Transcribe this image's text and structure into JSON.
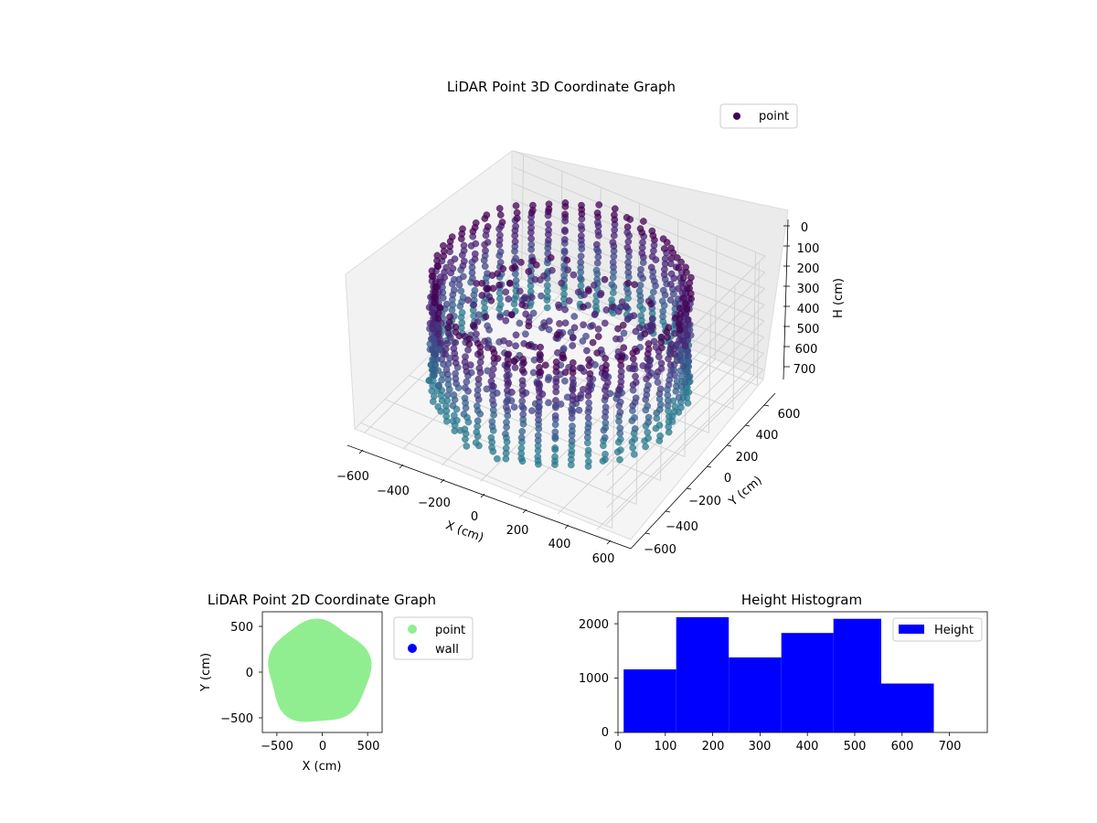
{
  "figure": {
    "background": "#ffffff"
  },
  "chart_data": [
    {
      "type": "scatter",
      "projection": "3d",
      "title": "LiDAR Point 3D Coordinate Graph",
      "xlabel": "X (cm)",
      "ylabel": "Y (cm)",
      "zlabel": "H (cm)",
      "x_ticks": [
        "−600",
        "−400",
        "−200",
        "0",
        "200",
        "400",
        "600"
      ],
      "y_ticks": [
        "−600",
        "−400",
        "−200",
        "0",
        "200",
        "400",
        "600"
      ],
      "z_ticks": [
        "0",
        "100",
        "200",
        "300",
        "400",
        "500",
        "600",
        "700"
      ],
      "xlim": [
        -650,
        650
      ],
      "ylim": [
        -650,
        650
      ],
      "zlim": [
        0,
        760
      ],
      "z_inverted": true,
      "grid": true,
      "colormap": "viridis",
      "legend": {
        "placement": "top-right",
        "entries": [
          {
            "label": "point",
            "color": "#440154"
          }
        ]
      },
      "series": [
        {
          "name": "point",
          "description_shape": "ring of vertical wall scans around radius ~560 cm plus interior and scattered outlier points",
          "wall_radius": 560,
          "height_range": [
            0,
            700
          ]
        }
      ]
    },
    {
      "type": "scatter",
      "title": "LiDAR Point 2D Coordinate Graph",
      "xlabel": "X (cm)",
      "ylabel": "Y (cm)",
      "x_ticks": [
        "−500",
        "0",
        "500"
      ],
      "y_ticks": [
        "−500",
        "0",
        "500"
      ],
      "xlim": [
        -660,
        660
      ],
      "ylim": [
        -660,
        660
      ],
      "legend": {
        "placement": "outside-right",
        "entries": [
          {
            "label": "point",
            "color": "#90ee90"
          },
          {
            "label": "wall",
            "color": "#0000ff"
          }
        ]
      },
      "series": [
        {
          "name": "point",
          "color": "#90ee90",
          "region": "filled disc approx radius 560 cm centered near origin"
        },
        {
          "name": "wall",
          "color": "#0000ff"
        }
      ]
    },
    {
      "type": "bar",
      "subtype": "histogram",
      "title": "Height Histogram",
      "x_ticks": [
        "0",
        "100",
        "200",
        "300",
        "400",
        "500",
        "600",
        "700"
      ],
      "y_ticks": [
        "0",
        "1000",
        "2000"
      ],
      "xlim": [
        0,
        780
      ],
      "ylim": [
        0,
        2220
      ],
      "bin_edges": [
        12,
        123,
        234,
        345,
        455,
        556,
        667
      ],
      "values": [
        1160,
        2120,
        1380,
        1830,
        2090,
        900
      ],
      "bar_color": "#0000ff",
      "legend": {
        "placement": "top-right",
        "entries": [
          {
            "label": "Height",
            "color": "#0000ff"
          }
        ]
      }
    }
  ]
}
